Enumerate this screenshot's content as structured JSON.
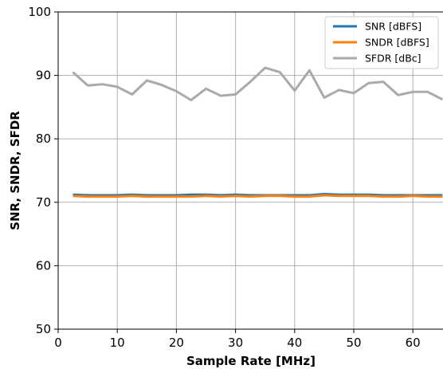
{
  "chart_data": {
    "type": "line",
    "title": "",
    "xlabel": "Sample Rate [MHz]",
    "ylabel": "SNR, SNDR, SFDR",
    "xlim": [
      0,
      65
    ],
    "ylim": [
      50,
      100
    ],
    "xticks": [
      0,
      10,
      20,
      30,
      40,
      50,
      60
    ],
    "yticks": [
      50,
      60,
      70,
      80,
      90,
      100
    ],
    "grid": true,
    "legend_position": "top-right",
    "series": [
      {
        "name": "SNR [dBFS]",
        "color": "#1f77b4",
        "x": [
          2.5,
          5,
          7.5,
          10,
          12.5,
          15,
          17.5,
          20,
          22.5,
          25,
          27.5,
          30,
          32.5,
          35,
          37.5,
          40,
          42.5,
          45,
          47.5,
          50,
          52.5,
          55,
          57.5,
          60,
          62.5,
          65
        ],
        "values": [
          71.2,
          71.1,
          71.1,
          71.1,
          71.2,
          71.1,
          71.1,
          71.1,
          71.2,
          71.2,
          71.1,
          71.2,
          71.1,
          71.1,
          71.1,
          71.1,
          71.1,
          71.3,
          71.2,
          71.2,
          71.2,
          71.1,
          71.1,
          71.1,
          71.1,
          71.1
        ]
      },
      {
        "name": "SNDR [dBFS]",
        "color": "#ff7f0e",
        "x": [
          2.5,
          5,
          7.5,
          10,
          12.5,
          15,
          17.5,
          20,
          22.5,
          25,
          27.5,
          30,
          32.5,
          35,
          37.5,
          40,
          42.5,
          45,
          47.5,
          50,
          52.5,
          55,
          57.5,
          60,
          62.5,
          65
        ],
        "values": [
          71.0,
          70.9,
          70.9,
          70.9,
          71.0,
          70.9,
          70.9,
          70.9,
          70.9,
          71.0,
          70.9,
          71.0,
          70.9,
          71.0,
          71.0,
          70.9,
          70.9,
          71.1,
          71.0,
          71.0,
          71.0,
          70.9,
          70.9,
          71.0,
          70.9,
          70.9
        ]
      },
      {
        "name": "SFDR [dBc]",
        "color": "#aaaaaa",
        "x": [
          2.5,
          5,
          7.5,
          10,
          12.5,
          15,
          17.5,
          20,
          22.5,
          25,
          27.5,
          30,
          32.5,
          35,
          37.5,
          40,
          42.5,
          45,
          47.5,
          50,
          52.5,
          55,
          57.5,
          60,
          62.5,
          65
        ],
        "values": [
          90.5,
          88.4,
          88.6,
          88.2,
          87.0,
          89.2,
          88.5,
          87.5,
          86.1,
          87.9,
          86.8,
          87.0,
          89.0,
          91.2,
          90.5,
          87.6,
          90.8,
          86.5,
          87.7,
          87.2,
          88.8,
          89.0,
          86.9,
          87.4,
          87.4,
          86.2
        ]
      }
    ]
  }
}
